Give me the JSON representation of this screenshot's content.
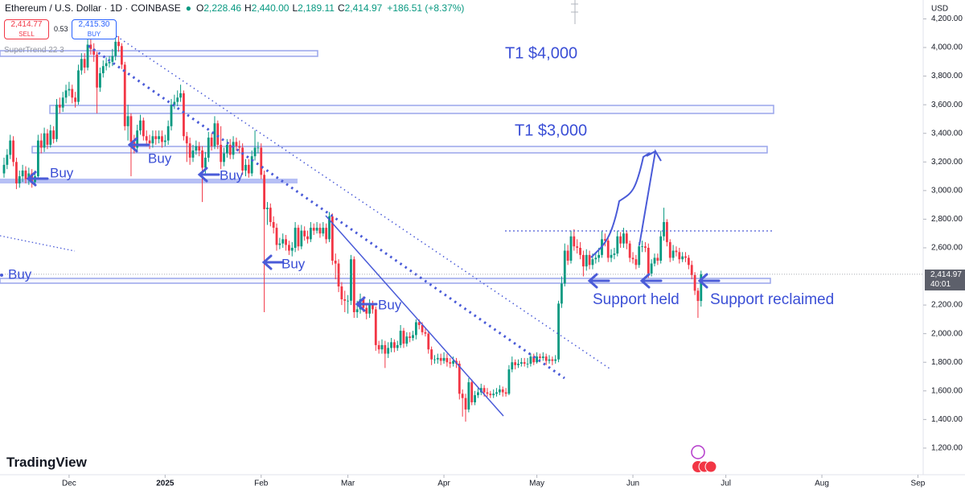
{
  "header": {
    "symbol": "Ethereum / U.S. Dollar · 1D · COINBASE",
    "ohlc": [
      {
        "key": "O",
        "value": "2,228.46"
      },
      {
        "key": "H",
        "value": "2,440.00"
      },
      {
        "key": "L",
        "value": "2,189.11"
      },
      {
        "key": "C",
        "value": "2,414.97"
      }
    ],
    "change": "+186.51 (+8.37%)",
    "sell_price": "2,414.77",
    "sell": "SELL",
    "spread": "0.53",
    "buy_price": "2,415.30",
    "buy": "BUY",
    "indicator": "SuperTrend 22 3"
  },
  "logo": "TradingView",
  "chart_data": {
    "type": "candlestick",
    "currency": "USD",
    "up_color": "#089981",
    "down_color": "#f23645",
    "grid": false,
    "open": [
      3120,
      3180,
      3250,
      3350,
      3200,
      3050,
      3100,
      3140,
      3080,
      3120,
      3060,
      3100,
      3350,
      3300,
      3400,
      3320,
      3420,
      3360,
      3600,
      3580,
      3650,
      3700,
      3710,
      3650,
      3620,
      3840,
      3920,
      3860,
      4020,
      3990,
      3950,
      3720,
      3820,
      3870,
      3890,
      3900,
      3940,
      4040,
      4010,
      3880,
      3450,
      3520,
      3340,
      3300,
      3420,
      3490,
      3380,
      3350,
      3330,
      3380,
      3360,
      3380,
      3340,
      3350,
      3450,
      3600,
      3620,
      3650,
      3680,
      3380,
      3330,
      3230,
      3280,
      3310,
      3280,
      3160,
      3230,
      3370,
      3310,
      3470,
      3320,
      3200,
      3260,
      3320,
      3250,
      3340,
      3310,
      3300,
      3140,
      3180,
      3120,
      3240,
      3300,
      3300,
      3110,
      2870,
      2880,
      2780,
      2740,
      2620,
      2630,
      2660,
      2620,
      2580,
      2600,
      2740,
      2610,
      2720,
      2680,
      2660,
      2740,
      2720,
      2740,
      2700,
      2740,
      2660,
      2820,
      2510,
      2490,
      2330,
      2240,
      2230,
      2230,
      2520,
      2150,
      2170,
      2240,
      2180,
      2140,
      2200,
      2170,
      1920,
      1890,
      1920,
      1860,
      1900,
      1940,
      1900,
      1920,
      2020,
      1930,
      1980,
      1970,
      1990,
      2080,
      2060,
      2010,
      2000,
      1890,
      1820,
      1820,
      1830,
      1810,
      1830,
      1800,
      1790,
      1810,
      1790,
      1580,
      1550,
      1470,
      1660,
      1520,
      1570,
      1590,
      1620,
      1590,
      1580,
      1570,
      1580,
      1590,
      1610,
      1590,
      1580,
      1750,
      1800,
      1780,
      1790,
      1800,
      1790,
      1790,
      1840,
      1800,
      1840,
      1830,
      1840,
      1810,
      1820,
      1810,
      1820,
      2210,
      2350,
      2580,
      2510,
      2680,
      2610,
      2600,
      2550,
      2470,
      2550,
      2480,
      2520,
      2530,
      2550,
      2660,
      2650,
      2530,
      2550,
      2560,
      2680,
      2630,
      2700,
      2630,
      2530,
      2520,
      2480,
      2610,
      2610,
      2600,
      2420,
      2490,
      2530,
      2510,
      2680,
      2780,
      2640,
      2530,
      2580,
      2570,
      2520,
      2540,
      2530,
      2480,
      2410,
      2300,
      2228.46
    ],
    "high": [
      3230,
      3290,
      3390,
      3380,
      3230,
      3140,
      3180,
      3170,
      3160,
      3150,
      3140,
      3390,
      3400,
      3440,
      3430,
      3460,
      3450,
      3640,
      3650,
      3690,
      3740,
      3760,
      3740,
      3690,
      3880,
      3960,
      3960,
      4080,
      4060,
      4030,
      3970,
      3860,
      3910,
      3930,
      3940,
      3990,
      4100,
      4080,
      4030,
      3900,
      3600,
      3540,
      3390,
      3460,
      3530,
      3510,
      3420,
      3390,
      3420,
      3420,
      3420,
      3420,
      3390,
      3490,
      3640,
      3670,
      3700,
      3740,
      3700,
      3410,
      3370,
      3320,
      3350,
      3340,
      3310,
      3270,
      3410,
      3400,
      3520,
      3490,
      3450,
      3300,
      3360,
      3360,
      3380,
      3370,
      3350,
      3330,
      3220,
      3220,
      3280,
      3420,
      3340,
      3330,
      3140,
      2920,
      2910,
      2820,
      2770,
      2670,
      2700,
      2690,
      2650,
      2640,
      2780,
      2760,
      2760,
      2750,
      2720,
      2780,
      2770,
      2780,
      2770,
      2780,
      2770,
      2850,
      2840,
      2560,
      2520,
      2360,
      2300,
      2270,
      2550,
      2540,
      2230,
      2280,
      2260,
      2210,
      2240,
      2230,
      2190,
      1950,
      1960,
      1950,
      1940,
      1970,
      1960,
      1950,
      2060,
      2040,
      2010,
      2010,
      2020,
      2100,
      2100,
      2080,
      2040,
      2020,
      1910,
      1850,
      1860,
      1860,
      1870,
      1860,
      1830,
      1840,
      1830,
      1810,
      1610,
      1580,
      1690,
      1680,
      1600,
      1620,
      1650,
      1640,
      1620,
      1600,
      1610,
      1620,
      1640,
      1630,
      1620,
      1780,
      1840,
      1820,
      1820,
      1830,
      1830,
      1830,
      1860,
      1860,
      1870,
      1860,
      1870,
      1860,
      1850,
      1840,
      1850,
      2230,
      2400,
      2630,
      2620,
      2720,
      2730,
      2660,
      2640,
      2580,
      2590,
      2580,
      2560,
      2570,
      2600,
      2720,
      2700,
      2680,
      2590,
      2600,
      2720,
      2710,
      2740,
      2720,
      2650,
      2570,
      2550,
      2640,
      2650,
      2640,
      2630,
      2520,
      2560,
      2560,
      2720,
      2880,
      2800,
      2660,
      2620,
      2610,
      2600,
      2570,
      2570,
      2550,
      2510,
      2430,
      2320,
      2440
    ],
    "low": [
      3090,
      3150,
      3220,
      3170,
      3010,
      3020,
      3060,
      3050,
      3040,
      3020,
      3030,
      3080,
      3260,
      3270,
      3290,
      3300,
      3330,
      3340,
      3540,
      3550,
      3610,
      3660,
      3610,
      3580,
      3600,
      3810,
      3820,
      3840,
      3950,
      3900,
      3540,
      3690,
      3790,
      3840,
      3860,
      3870,
      3910,
      3970,
      3850,
      3420,
      3350,
      3100,
      3260,
      3280,
      3390,
      3350,
      3310,
      3290,
      3300,
      3320,
      3330,
      3300,
      3310,
      3320,
      3420,
      3570,
      3590,
      3620,
      3350,
      3200,
      3180,
      3200,
      3250,
      3240,
      2920,
      3120,
      3200,
      3280,
      3290,
      3290,
      3150,
      3170,
      3230,
      3220,
      3220,
      3280,
      3260,
      3110,
      3100,
      3090,
      3100,
      3210,
      3260,
      3080,
      2150,
      2760,
      2750,
      2700,
      2580,
      2590,
      2600,
      2580,
      2550,
      2540,
      2570,
      2580,
      2590,
      2650,
      2630,
      2640,
      2690,
      2700,
      2670,
      2680,
      2630,
      2640,
      2480,
      2380,
      2290,
      2200,
      2150,
      2140,
      2200,
      2110,
      2110,
      2140,
      2150,
      2100,
      2110,
      2140,
      1880,
      1860,
      1860,
      1760,
      1830,
      1870,
      1870,
      1880,
      1900,
      1900,
      1910,
      1940,
      1950,
      1960,
      2030,
      1990,
      1980,
      1860,
      1780,
      1790,
      1790,
      1780,
      1790,
      1770,
      1760,
      1770,
      1760,
      1540,
      1420,
      1385,
      1450,
      1500,
      1500,
      1550,
      1570,
      1560,
      1560,
      1550,
      1550,
      1560,
      1570,
      1560,
      1560,
      1570,
      1730,
      1750,
      1760,
      1770,
      1770,
      1760,
      1770,
      1780,
      1790,
      1800,
      1810,
      1780,
      1790,
      1780,
      1790,
      1800,
      2180,
      2330,
      2480,
      2490,
      2580,
      2560,
      2520,
      2400,
      2440,
      2450,
      2450,
      2490,
      2500,
      2530,
      2610,
      2500,
      2500,
      2520,
      2540,
      2600,
      2600,
      2590,
      2500,
      2490,
      2450,
      2460,
      2570,
      2570,
      2390,
      2400,
      2470,
      2480,
      2490,
      2650,
      2610,
      2500,
      2510,
      2540,
      2490,
      2500,
      2500,
      2450,
      2380,
      2270,
      2110,
      2189.11
    ],
    "close": [
      3180,
      3250,
      3350,
      3200,
      3050,
      3100,
      3140,
      3080,
      3120,
      3060,
      3100,
      3350,
      3300,
      3400,
      3320,
      3420,
      3360,
      3600,
      3580,
      3650,
      3700,
      3710,
      3650,
      3620,
      3840,
      3920,
      3860,
      4020,
      3990,
      3950,
      3720,
      3820,
      3870,
      3890,
      3900,
      3940,
      4040,
      4010,
      3880,
      3450,
      3520,
      3340,
      3300,
      3420,
      3490,
      3380,
      3350,
      3330,
      3380,
      3360,
      3380,
      3340,
      3350,
      3450,
      3600,
      3620,
      3650,
      3680,
      3380,
      3330,
      3230,
      3280,
      3310,
      3280,
      3160,
      3230,
      3370,
      3310,
      3470,
      3320,
      3200,
      3260,
      3320,
      3250,
      3340,
      3310,
      3300,
      3140,
      3180,
      3120,
      3240,
      3300,
      3300,
      3110,
      2870,
      2880,
      2780,
      2740,
      2620,
      2630,
      2660,
      2620,
      2580,
      2600,
      2740,
      2610,
      2720,
      2680,
      2660,
      2740,
      2720,
      2740,
      2700,
      2740,
      2660,
      2820,
      2510,
      2490,
      2330,
      2240,
      2230,
      2230,
      2520,
      2150,
      2170,
      2240,
      2180,
      2140,
      2200,
      2170,
      1920,
      1890,
      1920,
      1860,
      1900,
      1940,
      1900,
      1920,
      2020,
      1930,
      1980,
      1970,
      1990,
      2080,
      2060,
      2010,
      2000,
      1890,
      1820,
      1820,
      1830,
      1810,
      1830,
      1800,
      1790,
      1810,
      1790,
      1580,
      1550,
      1470,
      1660,
      1520,
      1570,
      1590,
      1620,
      1590,
      1580,
      1570,
      1580,
      1590,
      1610,
      1590,
      1580,
      1750,
      1800,
      1780,
      1790,
      1800,
      1790,
      1790,
      1840,
      1800,
      1840,
      1830,
      1840,
      1810,
      1820,
      1810,
      1820,
      2210,
      2350,
      2580,
      2510,
      2680,
      2610,
      2600,
      2550,
      2470,
      2550,
      2480,
      2520,
      2530,
      2550,
      2660,
      2650,
      2530,
      2550,
      2560,
      2680,
      2630,
      2700,
      2630,
      2530,
      2520,
      2480,
      2610,
      2610,
      2600,
      2420,
      2490,
      2530,
      2510,
      2680,
      2780,
      2640,
      2530,
      2580,
      2570,
      2520,
      2540,
      2530,
      2480,
      2410,
      2300,
      2228.46,
      2414.97
    ],
    "xlim": [
      -1.3,
      296.7
    ],
    "xticks": [
      {
        "value": 21,
        "label": "Dec"
      },
      {
        "value": 52,
        "label": "2025"
      },
      {
        "value": 83,
        "label": "Feb"
      },
      {
        "value": 111,
        "label": "Mar"
      },
      {
        "value": 142,
        "label": "Apr"
      },
      {
        "value": 172,
        "label": "May"
      },
      {
        "value": 203,
        "label": "Jun"
      },
      {
        "value": 233,
        "label": "Jul"
      },
      {
        "value": 264,
        "label": "Aug"
      },
      {
        "value": 295,
        "label": "Sep"
      }
    ],
    "ylim": [
      1014,
      4332
    ],
    "yticks": [
      {
        "value": 1200,
        "label": "1,200.00"
      },
      {
        "value": 1400,
        "label": "1,400.00"
      },
      {
        "value": 1600,
        "label": "1,600.00"
      },
      {
        "value": 1800,
        "label": "1,800.00"
      },
      {
        "value": 2000,
        "label": "2,000.00"
      },
      {
        "value": 2200,
        "label": "2,200.00"
      },
      {
        "value": 2600,
        "label": "2,600.00"
      },
      {
        "value": 2800,
        "label": "2,800.00"
      },
      {
        "value": 3000,
        "label": "3,000.00"
      },
      {
        "value": 3200,
        "label": "3,200.00"
      },
      {
        "value": 3400,
        "label": "3,400.00"
      },
      {
        "value": 3600,
        "label": "3,600.00"
      },
      {
        "value": 3800,
        "label": "3,800.00"
      },
      {
        "value": 4000,
        "label": "4,000.00"
      },
      {
        "value": 4200,
        "label": "4,200.00"
      }
    ],
    "last_price_label": "2,414.97",
    "countdown": "40:01",
    "annotations": [
      "Buy",
      "Buy",
      "Buy",
      "Buy",
      "Buy",
      "Buy",
      "T1 $4,000",
      "T1 $3,000",
      "Support held",
      "Support reclaimed"
    ]
  }
}
